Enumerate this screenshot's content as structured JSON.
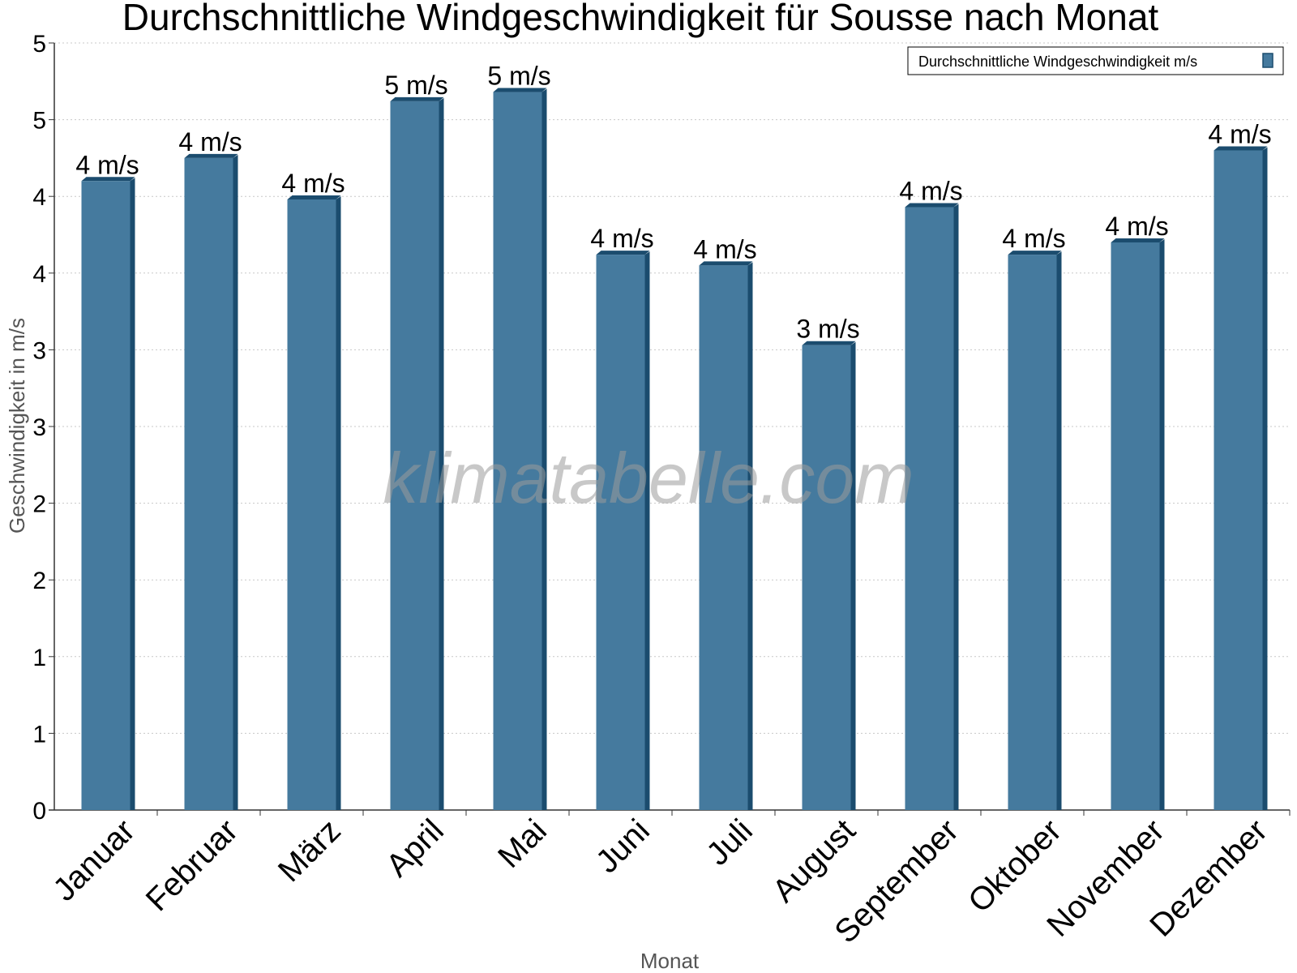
{
  "chart_data": {
    "type": "bar",
    "title": "Durchschnittliche Windgeschwindigkeit für Sousse nach Monat",
    "xlabel": "Monat",
    "ylabel": "Geschwindigkeit in m/s",
    "categories": [
      "Januar",
      "Februar",
      "März",
      "April",
      "Mai",
      "Juni",
      "Juli",
      "August",
      "September",
      "Oktober",
      "November",
      "Dezember"
    ],
    "series": [
      {
        "name": "Durchschnittliche Windgeschwindigkeit m/s",
        "values": [
          4.1,
          4.25,
          3.98,
          4.62,
          4.68,
          3.62,
          3.55,
          3.03,
          3.93,
          3.62,
          3.7,
          4.3
        ],
        "labels": [
          "4 m/s",
          "4 m/s",
          "4 m/s",
          "5 m/s",
          "5 m/s",
          "4 m/s",
          "4 m/s",
          "3 m/s",
          "4 m/s",
          "4 m/s",
          "4 m/s",
          "4 m/s"
        ]
      }
    ],
    "ylim": [
      0,
      5
    ],
    "yticks": [
      0,
      0.5,
      1,
      1.5,
      2,
      2.5,
      3,
      3.5,
      4,
      4.5,
      5
    ],
    "ytick_labels": [
      "0",
      "1",
      "1",
      "2",
      "2",
      "3",
      "3",
      "4",
      "4",
      "5",
      "5"
    ],
    "grid": true,
    "legend_position": "top-right",
    "colors": {
      "bar": "#457a9e",
      "bar_side": "#1b4c6e",
      "bar_top": "#1b4c6e",
      "grid": "#c8c8c8",
      "axis": "#333333"
    }
  },
  "watermark": "klimatabelle.com"
}
